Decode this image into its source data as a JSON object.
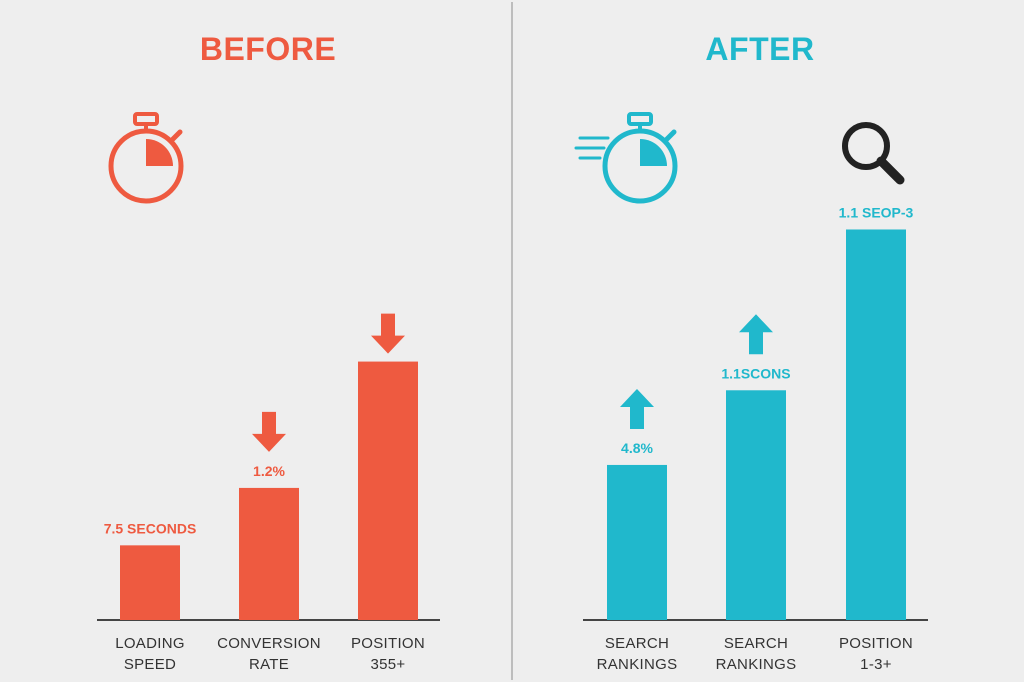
{
  "colors": {
    "before": "#ee5a40",
    "after": "#20b8cc",
    "background": "#eeeeee",
    "divider": "#bdbdbd",
    "baseline": "#444444",
    "text": "#333333"
  },
  "chart_data": [
    {
      "type": "bar",
      "title": "BEFORE",
      "icon": "stopwatch-icon",
      "color": "#ee5a40",
      "categories": [
        [
          "LOADING",
          "SPEED"
        ],
        [
          "CONVERSION",
          "RATE"
        ],
        [
          "POSITION",
          "355+"
        ]
      ],
      "values": [
        13,
        23,
        45
      ],
      "labels": [
        "7.5 SECONDS",
        "1.2%",
        ""
      ],
      "markers": [
        "",
        "down-arrow",
        "down-arrow"
      ],
      "ylim": [
        0,
        70
      ],
      "grid": false
    },
    {
      "type": "bar",
      "title": "AFTER",
      "icon": "fast-stopwatch-icon",
      "extra_icon": "magnifier-icon",
      "color": "#20b8cc",
      "categories": [
        [
          "SEARCH",
          "RANKINGS"
        ],
        [
          "SEARCH",
          "RANKINGS"
        ],
        [
          "POSITION",
          "1-3+"
        ]
      ],
      "values": [
        27,
        40,
        68
      ],
      "labels": [
        "4.8%",
        "1.1SCONS",
        "1.1 SEOP-3"
      ],
      "markers": [
        "up-arrow",
        "up-arrow",
        ""
      ],
      "ylim": [
        0,
        70
      ],
      "grid": false
    }
  ]
}
